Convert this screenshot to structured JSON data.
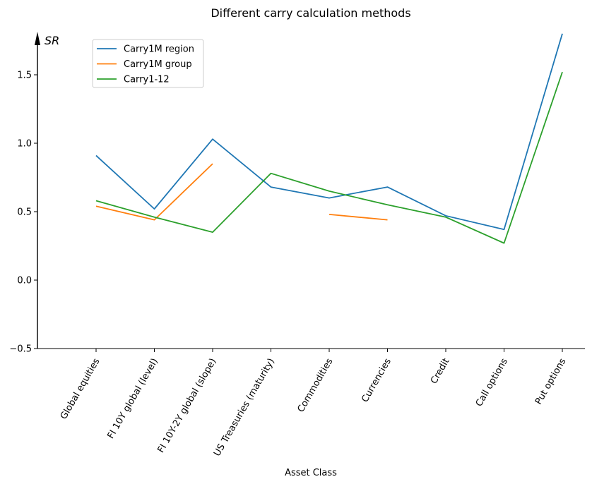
{
  "chart_data": {
    "type": "line",
    "title": "Different carry calculation methods",
    "xlabel": "Asset Class",
    "ylabel": "SR",
    "ylim": [
      -0.5,
      1.8
    ],
    "yticks": [
      "−0.5",
      "0.0",
      "0.5",
      "1.0",
      "1.5"
    ],
    "ytick_values": [
      -0.5,
      0.0,
      0.5,
      1.0,
      1.5
    ],
    "categories": [
      "Global equities",
      "FI 10Y global (level)",
      "FI 10Y-2Y global (slope)",
      "US Treasuries (maturity)",
      "Commodities",
      "Currencies",
      "Credit",
      "Call options",
      "Put options"
    ],
    "legend_position": "upper-left",
    "grid": false,
    "series": [
      {
        "name": "Carry1M region",
        "color": "#1f77b4",
        "values": [
          0.91,
          0.52,
          1.03,
          0.68,
          0.6,
          0.68,
          0.47,
          0.37,
          1.8
        ]
      },
      {
        "name": "Carry1M group",
        "color": "#ff7f0e",
        "values": [
          0.54,
          0.44,
          0.85,
          null,
          0.48,
          0.44,
          null,
          null,
          null
        ]
      },
      {
        "name": "Carry1-12",
        "color": "#2ca02c",
        "values": [
          0.58,
          0.46,
          0.35,
          0.78,
          0.65,
          0.55,
          0.46,
          0.27,
          1.52
        ]
      }
    ]
  }
}
